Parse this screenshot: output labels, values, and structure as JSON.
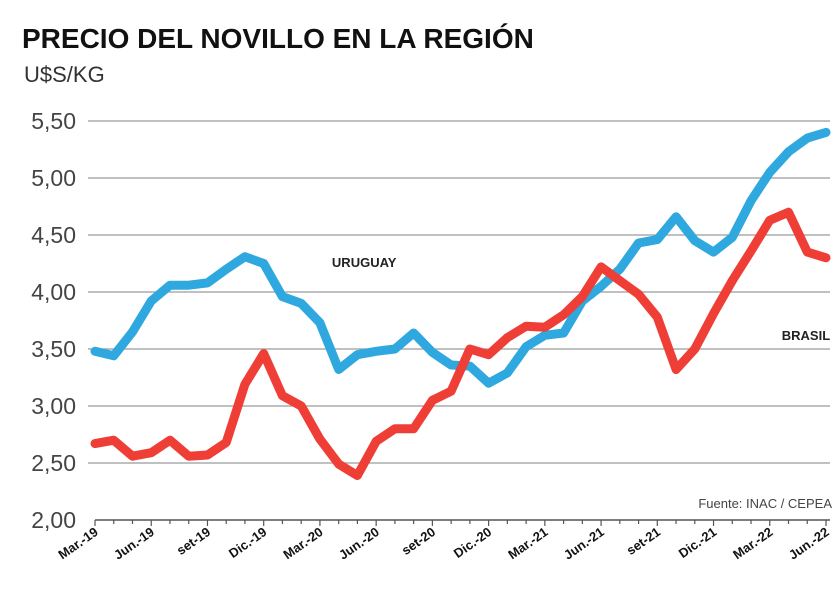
{
  "chart_data": {
    "type": "line",
    "title": "PRECIO DEL NOVILLO EN LA REGIÓN",
    "unit_label": "U$S/KG",
    "source": "Fuente: INAC / CEPEA",
    "ylim": [
      2.0,
      5.5
    ],
    "yticks": [
      "2,00",
      "2,50",
      "3,00",
      "3,50",
      "4,00",
      "4,50",
      "5,00",
      "5,50"
    ],
    "ytick_values": [
      2.0,
      2.5,
      3.0,
      3.5,
      4.0,
      4.5,
      5.0,
      5.5
    ],
    "grid": true,
    "x": [
      "Mar.-19",
      "Abr.-19",
      "May.-19",
      "Jun.-19",
      "Jul.-19",
      "Ago.-19",
      "set-19",
      "Oct.-19",
      "Nov.-19",
      "Dic.-19",
      "Ene.-20",
      "Feb.-20",
      "Mar.-20",
      "Abr.-20",
      "May.-20",
      "Jun.-20",
      "Jul.-20",
      "Ago.-20",
      "set-20",
      "Oct.-20",
      "Nov.-20",
      "Dic.-20",
      "Ene.-21",
      "Feb.-21",
      "Mar.-21",
      "Abr.-21",
      "May.-21",
      "Jun.-21",
      "Jul.-21",
      "Ago.-21",
      "set-21",
      "Oct.-21",
      "Nov.-21",
      "Dic.-21",
      "Ene.-22",
      "Feb.-22",
      "Mar.-22",
      "Abr.-22",
      "May.-22",
      "Jun.-22"
    ],
    "xtick_labels": [
      {
        "index": 0,
        "label": "Mar.-19"
      },
      {
        "index": 3,
        "label": "Jun.-19"
      },
      {
        "index": 6,
        "label": "set-19"
      },
      {
        "index": 9,
        "label": "Dic.-19"
      },
      {
        "index": 12,
        "label": "Mar.-20"
      },
      {
        "index": 15,
        "label": "Jun.-20"
      },
      {
        "index": 18,
        "label": "set-20"
      },
      {
        "index": 21,
        "label": "Dic.-20"
      },
      {
        "index": 24,
        "label": "Mar.-21"
      },
      {
        "index": 27,
        "label": "Jun.-21"
      },
      {
        "index": 30,
        "label": "set-21"
      },
      {
        "index": 33,
        "label": "Dic.-21"
      },
      {
        "index": 36,
        "label": "Mar.-22"
      },
      {
        "index": 39,
        "label": "Jun.-22"
      }
    ],
    "series": [
      {
        "name": "URUGUAY",
        "color": "#2ea8df",
        "label_at": {
          "index": 12,
          "value": 4.22
        },
        "values": [
          3.48,
          3.44,
          3.65,
          3.92,
          4.06,
          4.06,
          4.08,
          4.2,
          4.31,
          4.25,
          3.96,
          3.9,
          3.73,
          3.32,
          3.45,
          3.48,
          3.5,
          3.64,
          3.47,
          3.36,
          3.35,
          3.2,
          3.29,
          3.52,
          3.62,
          3.64,
          3.92,
          4.05,
          4.2,
          4.43,
          4.46,
          4.66,
          4.45,
          4.35,
          4.48,
          4.8,
          5.05,
          5.23,
          5.35,
          5.4
        ]
      },
      {
        "name": "BRASIL",
        "color": "#ef3e36",
        "label_at": {
          "index": 36,
          "value": 3.58
        },
        "values": [
          2.67,
          2.7,
          2.56,
          2.59,
          2.7,
          2.56,
          2.57,
          2.68,
          3.19,
          3.46,
          3.09,
          3.0,
          2.71,
          2.49,
          2.39,
          2.69,
          2.8,
          2.8,
          3.05,
          3.13,
          3.5,
          3.45,
          3.6,
          3.7,
          3.69,
          3.8,
          3.96,
          4.22,
          4.1,
          3.98,
          3.78,
          3.32,
          3.5,
          3.81,
          4.1,
          4.36,
          4.63,
          4.7,
          4.35,
          4.3
        ]
      }
    ]
  }
}
